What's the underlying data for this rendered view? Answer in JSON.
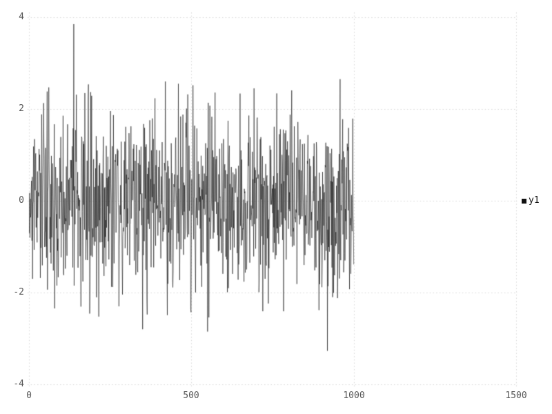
{
  "page": {
    "background_color": "#ffffff"
  },
  "chart_data": {
    "type": "line",
    "title": "",
    "xlabel": "",
    "ylabel": "",
    "xlim": [
      0,
      1540
    ],
    "ylim": [
      -4,
      4
    ],
    "x_ticks": [
      0,
      500,
      1000,
      1500
    ],
    "x_tick_labels": [
      "0",
      "500",
      "1000",
      "1500"
    ],
    "y_ticks": [
      -4,
      -2,
      0,
      2,
      4
    ],
    "y_tick_labels": [
      "-4",
      "-2",
      "0",
      "2",
      "4"
    ],
    "grid": {
      "style": "dotted",
      "color": "#d6d6d6",
      "on": true
    },
    "axis_label_color": "#565656",
    "legend": {
      "position": "outside-right",
      "entries": [
        {
          "label": "y1",
          "marker": "filled-square",
          "color": "#111111"
        }
      ]
    },
    "series": [
      {
        "name": "y1",
        "color": "#141414",
        "kind": "zero-mean gaussian noise",
        "x_start": 1,
        "x_end": 1000,
        "n_points": 1000,
        "mean": 0,
        "std": 0.95,
        "observed_max": {
          "x": 138,
          "y": 3.85
        },
        "observed_min": {
          "x": 919,
          "y": -3.27
        },
        "notable_extrema": [
          {
            "x": 138,
            "y": 3.85
          },
          {
            "x": 350,
            "y": -2.8
          },
          {
            "x": 420,
            "y": 2.6
          },
          {
            "x": 460,
            "y": 2.55
          },
          {
            "x": 550,
            "y": -2.85
          },
          {
            "x": 919,
            "y": -3.27
          },
          {
            "x": 958,
            "y": 2.65
          }
        ]
      }
    ]
  }
}
